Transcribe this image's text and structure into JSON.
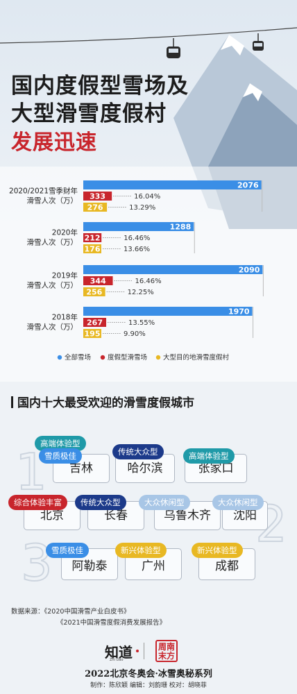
{
  "title": {
    "line1": "国内度假型雪场及",
    "line2": "大型滑雪度假村",
    "line3": "发展迅速"
  },
  "chart_data": {
    "type": "bar",
    "categories": [
      {
        "line1": "2020/2021雪季财年",
        "line2": "滑雪人次（万）"
      },
      {
        "line1": "2020年",
        "line2": "滑雪人次（万）"
      },
      {
        "line1": "2019年",
        "line2": "滑雪人次（万）"
      },
      {
        "line1": "2018年",
        "line2": "滑雪人次（万）"
      }
    ],
    "series": [
      {
        "name": "全部雪场",
        "color": "#3a8ee6",
        "values": [
          2076,
          1288,
          2090,
          1970
        ]
      },
      {
        "name": "度假型滑雪场",
        "color": "#c8252c",
        "values": [
          333,
          212,
          344,
          267
        ],
        "share_labels": [
          "16.04%",
          "16.46%",
          "16.46%",
          "13.55%"
        ]
      },
      {
        "name": "大型目的地滑雪度假村",
        "color": "#e8b823",
        "values": [
          276,
          176,
          256,
          195
        ],
        "share_labels": [
          "13.29%",
          "13.66%",
          "12.25%",
          "9.90%"
        ]
      }
    ],
    "xlim": [
      0,
      2200
    ],
    "legend_position": "bottom",
    "grid": false
  },
  "section_title": "国内十大最受欢迎的滑雪度假城市",
  "cities": [
    {
      "name": "吉林",
      "tags": [
        {
          "text": "高端体验型",
          "style": "teal"
        },
        {
          "text": "雪质极佳",
          "style": "blue"
        }
      ]
    },
    {
      "name": "哈尔滨",
      "tags": [
        {
          "text": "传统大众型",
          "style": "navy"
        }
      ]
    },
    {
      "name": "张家口",
      "tags": [
        {
          "text": "高端体验型",
          "style": "teal"
        }
      ]
    },
    {
      "name": "北京",
      "tags": [
        {
          "text": "综合体验丰富",
          "style": "red"
        }
      ]
    },
    {
      "name": "长春",
      "tags": [
        {
          "text": "传统大众型",
          "style": "navy"
        }
      ]
    },
    {
      "name": "乌鲁木齐",
      "tags": [
        {
          "text": "大众休闲型",
          "style": "lblue"
        }
      ]
    },
    {
      "name": "沈阳",
      "tags": [
        {
          "text": "大众休闲型",
          "style": "lblue"
        }
      ]
    },
    {
      "name": "阿勒泰",
      "tags": [
        {
          "text": "雪质极佳",
          "style": "blue"
        }
      ]
    },
    {
      "name": "广州",
      "tags": [
        {
          "text": "新兴体验型",
          "style": "yellow"
        }
      ]
    },
    {
      "name": "成都",
      "tags": [
        {
          "text": "新兴体验型",
          "style": "yellow"
        }
      ]
    }
  ],
  "rank_numerals": [
    "1",
    "2",
    "3"
  ],
  "source": {
    "label": "数据来源：",
    "ref1": "《2020中国滑雪产业白皮书》",
    "ref2": "《2021中国滑雪度假消费发展报告》"
  },
  "brand": {
    "zhidao": "知道",
    "zhidao_sub": "Zhi Dao",
    "stamp_line1": "周南",
    "stamp_line2": "末方",
    "series": "2022北京冬奥会·冰雪奥秘系列",
    "credits": "制作：陈欣颖    编辑：刘韵珊    校对：胡晓菲"
  }
}
